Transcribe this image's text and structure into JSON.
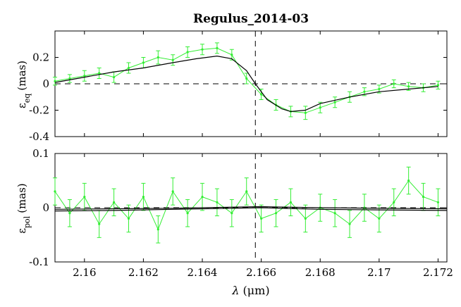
{
  "chart_data": [
    {
      "type": "line",
      "title": "Regulus_2014-03",
      "ylabel_main": "ε",
      "ylabel_sub": "eq",
      "ylabel_unit": "(mas)",
      "xlim": [
        2.159,
        2.1723
      ],
      "ylim": [
        -0.4,
        0.4
      ],
      "yticks": [
        0.2,
        0,
        -0.2,
        -0.4
      ],
      "yticklabels": [
        "0.2",
        "0",
        "-0.2",
        "-0.4"
      ],
      "grid": false,
      "reference_lines": {
        "horizontal": 0,
        "vertical": 2.1658
      },
      "series": [
        {
          "color": "#33ee33",
          "style": "errorbar",
          "x": [
            2.159,
            2.1595,
            2.16,
            2.1605,
            2.161,
            2.1615,
            2.162,
            2.1625,
            2.163,
            2.1635,
            2.164,
            2.1645,
            2.165,
            2.1655,
            2.166,
            2.1665,
            2.167,
            2.1675,
            2.168,
            2.1685,
            2.169,
            2.1695,
            2.17,
            2.1705,
            2.171,
            2.1715,
            2.172
          ],
          "y": [
            0.02,
            0.04,
            0.06,
            0.08,
            0.05,
            0.12,
            0.16,
            0.2,
            0.18,
            0.24,
            0.26,
            0.27,
            0.22,
            0.04,
            -0.08,
            -0.16,
            -0.21,
            -0.22,
            -0.18,
            -0.14,
            -0.1,
            -0.06,
            -0.04,
            0.0,
            -0.02,
            -0.03,
            -0.01
          ],
          "err": [
            0.03,
            0.03,
            0.04,
            0.04,
            0.04,
            0.04,
            0.04,
            0.05,
            0.04,
            0.04,
            0.04,
            0.04,
            0.04,
            0.04,
            0.04,
            0.04,
            0.04,
            0.05,
            0.04,
            0.04,
            0.04,
            0.03,
            0.03,
            0.03,
            0.03,
            0.03,
            0.03
          ]
        },
        {
          "color": "#000000",
          "style": "line",
          "x": [
            2.159,
            2.16,
            2.161,
            2.162,
            2.163,
            2.1638,
            2.1645,
            2.165,
            2.1655,
            2.1658,
            2.1662,
            2.1667,
            2.167,
            2.1675,
            2.168,
            2.169,
            2.17,
            2.171,
            2.172
          ],
          "y": [
            0.01,
            0.05,
            0.09,
            0.12,
            0.16,
            0.19,
            0.21,
            0.19,
            0.1,
            0.0,
            -0.12,
            -0.19,
            -0.21,
            -0.2,
            -0.15,
            -0.1,
            -0.06,
            -0.04,
            -0.02
          ]
        }
      ]
    },
    {
      "type": "line",
      "ylabel_main": "ε",
      "ylabel_sub": "pol",
      "ylabel_unit": "(mas)",
      "xlabel_main": "λ",
      "xlabel_unit": "(μm)",
      "xlim": [
        2.159,
        2.1723
      ],
      "ylim": [
        -0.1,
        0.1
      ],
      "yticks": [
        0.1,
        0,
        -0.1
      ],
      "yticklabels": [
        "0.1",
        "0",
        "-0.1"
      ],
      "xticks": [
        2.16,
        2.162,
        2.164,
        2.166,
        2.168,
        2.17,
        2.172
      ],
      "xticklabels": [
        "2.16",
        "2.162",
        "2.164",
        "2.166",
        "2.168",
        "2.17",
        "2.172"
      ],
      "grid": false,
      "reference_lines": {
        "horizontal": 0,
        "vertical": 2.1658
      },
      "series": [
        {
          "color": "#33ee33",
          "style": "errorbar",
          "x": [
            2.159,
            2.1595,
            2.16,
            2.1605,
            2.161,
            2.1615,
            2.162,
            2.1625,
            2.163,
            2.1635,
            2.164,
            2.1645,
            2.165,
            2.1655,
            2.166,
            2.1665,
            2.167,
            2.1675,
            2.168,
            2.1685,
            2.169,
            2.1695,
            2.17,
            2.1705,
            2.171,
            2.1715,
            2.172
          ],
          "y": [
            0.03,
            -0.01,
            0.02,
            -0.03,
            0.01,
            -0.02,
            0.02,
            -0.04,
            0.03,
            -0.01,
            0.02,
            0.01,
            -0.01,
            0.03,
            -0.02,
            -0.01,
            0.01,
            -0.02,
            0.0,
            -0.01,
            -0.03,
            0.0,
            -0.02,
            0.01,
            0.05,
            0.02,
            0.01
          ],
          "err": [
            0.025,
            0.025,
            0.025,
            0.025,
            0.025,
            0.025,
            0.025,
            0.025,
            0.025,
            0.025,
            0.025,
            0.025,
            0.025,
            0.025,
            0.025,
            0.025,
            0.025,
            0.025,
            0.025,
            0.025,
            0.025,
            0.025,
            0.025,
            0.025,
            0.025,
            0.025,
            0.025
          ]
        },
        {
          "color": "#000000",
          "style": "line",
          "x": [
            2.159,
            2.161,
            2.163,
            2.165,
            2.166,
            2.168,
            2.17,
            2.1723
          ],
          "y": [
            -0.003,
            -0.002,
            -0.001,
            0.001,
            0.002,
            0.0,
            -0.001,
            -0.002
          ]
        },
        {
          "color": "#000000",
          "style": "line",
          "x": [
            2.159,
            2.161,
            2.163,
            2.165,
            2.166,
            2.168,
            2.17,
            2.1723
          ],
          "y": [
            -0.006,
            -0.005,
            -0.003,
            -0.001,
            0.0,
            -0.003,
            -0.004,
            -0.005
          ]
        }
      ]
    }
  ]
}
